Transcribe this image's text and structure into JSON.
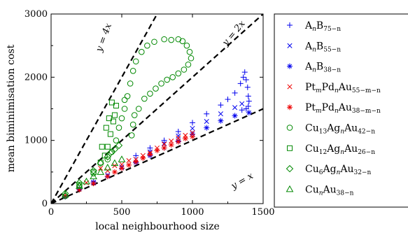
{
  "chart_data": {
    "type": "scatter",
    "title": "",
    "xlabel": "local neighbourhood size",
    "ylabel": "mean biminimisation cost",
    "xlim": [
      0,
      1500
    ],
    "ylim": [
      0,
      3000
    ],
    "x_ticks": [
      "0",
      "500",
      "1000",
      "1500"
    ],
    "y_ticks": [
      "0",
      "1000",
      "2000",
      "3000"
    ],
    "grid": false,
    "legend_position": "right-outside",
    "reference_lines": [
      {
        "label": "y = 4x",
        "slope": 4
      },
      {
        "label": "y = 2x",
        "slope": 2
      },
      {
        "label": "y = x",
        "slope": 1
      }
    ],
    "series": [
      {
        "name": "A_nB_{75-n}",
        "label_parts": [
          "A",
          "n",
          "B",
          "75−n"
        ],
        "marker": "plus",
        "color": "#0000ee",
        "points": [
          [
            600,
            760
          ],
          [
            700,
            880
          ],
          [
            800,
            1000
          ],
          [
            900,
            1140
          ],
          [
            1000,
            1280
          ],
          [
            1100,
            1420
          ],
          [
            1200,
            1560
          ],
          [
            1250,
            1650
          ],
          [
            1300,
            1750
          ],
          [
            1340,
            1900
          ],
          [
            1360,
            2000
          ],
          [
            1370,
            2080
          ],
          [
            1380,
            1960
          ],
          [
            1390,
            1840
          ],
          [
            1395,
            1700
          ],
          [
            1400,
            1620
          ],
          [
            1395,
            1540
          ],
          [
            1380,
            1500
          ],
          [
            1350,
            1480
          ]
        ]
      },
      {
        "name": "A_nB_{55-n}",
        "label_parts": [
          "A",
          "n",
          "B",
          "55−n"
        ],
        "marker": "x",
        "color": "#0000ee",
        "points": [
          [
            300,
            330
          ],
          [
            400,
            450
          ],
          [
            500,
            580
          ],
          [
            600,
            700
          ],
          [
            700,
            820
          ],
          [
            800,
            950
          ],
          [
            900,
            1070
          ],
          [
            1000,
            1190
          ],
          [
            1100,
            1300
          ],
          [
            1200,
            1420
          ],
          [
            1300,
            1520
          ],
          [
            1350,
            1580
          ]
        ]
      },
      {
        "name": "A_nB_{38-n}",
        "label_parts": [
          "A",
          "n",
          "B",
          "38−n"
        ],
        "marker": "asterisk",
        "color": "#0000ee",
        "points": [
          [
            100,
            110
          ],
          [
            200,
            230
          ],
          [
            300,
            340
          ],
          [
            400,
            430
          ],
          [
            500,
            560
          ],
          [
            600,
            650
          ],
          [
            700,
            760
          ],
          [
            800,
            880
          ],
          [
            900,
            990
          ],
          [
            1000,
            1100
          ],
          [
            1100,
            1200
          ],
          [
            1200,
            1310
          ],
          [
            1300,
            1390
          ],
          [
            1400,
            1440
          ]
        ]
      },
      {
        "name": "Pt_mPd_nAu_{55-m-n}",
        "label_parts": [
          "Pt",
          "m",
          "Pd",
          "n",
          "Au",
          "55−m−n"
        ],
        "marker": "x",
        "color": "#ee0000",
        "points": [
          [
            250,
            330
          ],
          [
            350,
            560
          ],
          [
            400,
            520
          ],
          [
            450,
            600
          ],
          [
            500,
            620
          ],
          [
            550,
            680
          ],
          [
            600,
            700
          ],
          [
            650,
            760
          ],
          [
            700,
            800
          ],
          [
            750,
            880
          ],
          [
            800,
            940
          ],
          [
            850,
            990
          ],
          [
            900,
            1040
          ],
          [
            950,
            1080
          ],
          [
            1000,
            1120
          ]
        ]
      },
      {
        "name": "Pt_mPd_nAu_{38-m-n}",
        "label_parts": [
          "Pt",
          "m",
          "Pd",
          "n",
          "Au",
          "38−m−n"
        ],
        "marker": "asterisk",
        "color": "#ee0000",
        "points": [
          [
            100,
            120
          ],
          [
            200,
            220
          ],
          [
            300,
            320
          ],
          [
            400,
            430
          ],
          [
            450,
            500
          ],
          [
            500,
            560
          ],
          [
            550,
            610
          ],
          [
            600,
            660
          ],
          [
            650,
            720
          ],
          [
            700,
            780
          ],
          [
            750,
            840
          ],
          [
            800,
            880
          ],
          [
            850,
            930
          ],
          [
            900,
            980
          ],
          [
            950,
            1030
          ],
          [
            1000,
            1060
          ]
        ]
      },
      {
        "name": "Cu_13Ag_nAu_{42-n}",
        "label_parts": [
          "Cu",
          "13",
          "Ag",
          "n",
          "Au",
          "42−n"
        ],
        "marker": "circle",
        "color": "#008800",
        "points": [
          [
            100,
            120
          ],
          [
            200,
            280
          ],
          [
            300,
            480
          ],
          [
            400,
            700
          ],
          [
            430,
            820
          ],
          [
            460,
            1000
          ],
          [
            480,
            1200
          ],
          [
            500,
            1350
          ],
          [
            520,
            1500
          ],
          [
            540,
            1700
          ],
          [
            560,
            1900
          ],
          [
            580,
            2100
          ],
          [
            600,
            2250
          ],
          [
            640,
            2400
          ],
          [
            680,
            2500
          ],
          [
            730,
            2560
          ],
          [
            800,
            2600
          ],
          [
            850,
            2590
          ],
          [
            900,
            2600
          ],
          [
            930,
            2570
          ],
          [
            960,
            2500
          ],
          [
            980,
            2400
          ],
          [
            990,
            2300
          ],
          [
            970,
            2200
          ],
          [
            940,
            2120
          ],
          [
            900,
            2060
          ],
          [
            860,
            2000
          ],
          [
            820,
            1960
          ],
          [
            780,
            1900
          ],
          [
            740,
            1820
          ],
          [
            700,
            1740
          ],
          [
            660,
            1660
          ],
          [
            620,
            1500
          ],
          [
            590,
            1400
          ],
          [
            580,
            1250
          ],
          [
            570,
            1080
          ],
          [
            520,
            1640
          ]
        ]
      },
      {
        "name": "Cu_12Ag_nAu_{26-n}",
        "label_parts": [
          "Cu",
          "12",
          "Ag",
          "n",
          "Au",
          "26−n"
        ],
        "marker": "square",
        "color": "#008800",
        "points": [
          [
            200,
            300
          ],
          [
            300,
            500
          ],
          [
            350,
            650
          ],
          [
            380,
            760
          ],
          [
            400,
            900
          ],
          [
            420,
            1100
          ],
          [
            440,
            1300
          ],
          [
            450,
            1400
          ],
          [
            460,
            1550
          ],
          [
            430,
            1600
          ],
          [
            410,
            1350
          ],
          [
            390,
            1200
          ],
          [
            360,
            900
          ]
        ]
      },
      {
        "name": "Cu_6Ag_nAu_{32-n}",
        "label_parts": [
          "Cu",
          "6",
          "Ag",
          "n",
          "Au",
          "32−n"
        ],
        "marker": "diamond",
        "color": "#008800",
        "points": [
          [
            100,
            160
          ],
          [
            200,
            330
          ],
          [
            300,
            520
          ],
          [
            350,
            640
          ],
          [
            400,
            740
          ],
          [
            420,
            800
          ],
          [
            450,
            860
          ],
          [
            480,
            920
          ]
        ]
      },
      {
        "name": "Cu_nAu_{38-n}",
        "label_parts": [
          "Cu",
          "n",
          "Au",
          "38−n"
        ],
        "marker": "triangle",
        "color": "#008800",
        "points": [
          [
            100,
            140
          ],
          [
            200,
            280
          ],
          [
            250,
            350
          ],
          [
            300,
            430
          ],
          [
            350,
            500
          ],
          [
            400,
            570
          ],
          [
            450,
            640
          ],
          [
            500,
            700
          ]
        ]
      }
    ]
  }
}
